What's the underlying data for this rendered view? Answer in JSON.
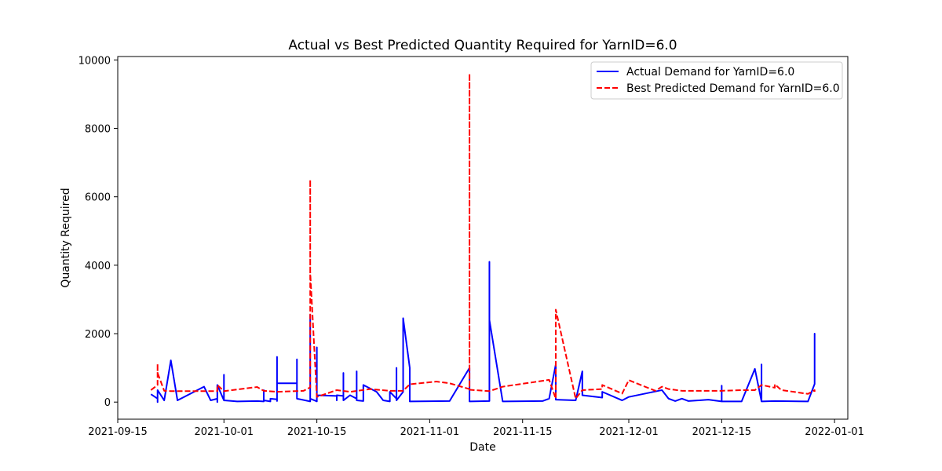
{
  "chart_data": {
    "type": "line",
    "title": "Actual vs Best Predicted Quantity Required for YarnID=6.0",
    "xlabel": "Date",
    "ylabel": "Quantity Required",
    "xlim": [
      "2021-09-15",
      "2022-01-03"
    ],
    "ylim": [
      -500,
      10100
    ],
    "x_ticks": [
      "2021-09-15",
      "2021-10-01",
      "2021-10-15",
      "2021-11-01",
      "2021-11-15",
      "2021-12-01",
      "2021-12-15",
      "2022-01-01"
    ],
    "y_ticks": [
      0,
      2000,
      4000,
      6000,
      8000,
      10000
    ],
    "grid": false,
    "legend_position": "top-right",
    "series": [
      {
        "name": "Actual Demand for YarnID=6.0",
        "color": "#0000ff",
        "style": "solid",
        "points": [
          [
            "2021-09-20",
            230
          ],
          [
            "2021-09-21",
            100
          ],
          [
            "2021-09-21",
            0
          ],
          [
            "2021-09-21",
            350
          ],
          [
            "2021-09-22",
            50
          ],
          [
            "2021-09-23",
            1220
          ],
          [
            "2021-09-24",
            50
          ],
          [
            "2021-09-28",
            450
          ],
          [
            "2021-09-29",
            50
          ],
          [
            "2021-09-30",
            100
          ],
          [
            "2021-09-30",
            0
          ],
          [
            "2021-09-30",
            500
          ],
          [
            "2021-10-01",
            50
          ],
          [
            "2021-10-01",
            800
          ],
          [
            "2021-10-01",
            50
          ],
          [
            "2021-10-03",
            20
          ],
          [
            "2021-10-06",
            30
          ],
          [
            "2021-10-07",
            20
          ],
          [
            "2021-10-07",
            350
          ],
          [
            "2021-10-07",
            50
          ],
          [
            "2021-10-08",
            20
          ],
          [
            "2021-10-08",
            100
          ],
          [
            "2021-10-09",
            80
          ],
          [
            "2021-10-09",
            30
          ],
          [
            "2021-10-09",
            1320
          ],
          [
            "2021-10-09",
            550
          ],
          [
            "2021-10-12",
            550
          ],
          [
            "2021-10-12",
            1250
          ],
          [
            "2021-10-12",
            100
          ],
          [
            "2021-10-14",
            20
          ],
          [
            "2021-10-14",
            2550
          ],
          [
            "2021-10-14",
            100
          ],
          [
            "2021-10-15",
            20
          ],
          [
            "2021-10-15",
            1600
          ],
          [
            "2021-10-15",
            200
          ],
          [
            "2021-10-18",
            180
          ],
          [
            "2021-10-18",
            50
          ],
          [
            "2021-10-18",
            200
          ],
          [
            "2021-10-19",
            180
          ],
          [
            "2021-10-19",
            850
          ],
          [
            "2021-10-19",
            50
          ],
          [
            "2021-10-20",
            200
          ],
          [
            "2021-10-21",
            100
          ],
          [
            "2021-10-21",
            900
          ],
          [
            "2021-10-21",
            50
          ],
          [
            "2021-10-22",
            30
          ],
          [
            "2021-10-22",
            500
          ],
          [
            "2021-10-24",
            300
          ],
          [
            "2021-10-25",
            50
          ],
          [
            "2021-10-26",
            20
          ],
          [
            "2021-10-26",
            300
          ],
          [
            "2021-10-27",
            100
          ],
          [
            "2021-10-27",
            1000
          ],
          [
            "2021-10-27",
            50
          ],
          [
            "2021-10-28",
            300
          ],
          [
            "2021-10-28",
            2450
          ],
          [
            "2021-10-29",
            1000
          ],
          [
            "2021-10-29",
            30
          ],
          [
            "2021-10-29",
            20
          ],
          [
            "2021-11-04",
            30
          ],
          [
            "2021-11-07",
            1000
          ],
          [
            "2021-11-07",
            20
          ],
          [
            "2021-11-10",
            30
          ],
          [
            "2021-11-10",
            4100
          ],
          [
            "2021-11-10",
            2400
          ],
          [
            "2021-11-12",
            20
          ],
          [
            "2021-11-18",
            30
          ],
          [
            "2021-11-19",
            100
          ],
          [
            "2021-11-20",
            1100
          ],
          [
            "2021-11-20",
            70
          ],
          [
            "2021-11-23",
            50
          ],
          [
            "2021-11-24",
            900
          ],
          [
            "2021-11-24",
            200
          ],
          [
            "2021-11-27",
            130
          ],
          [
            "2021-11-27",
            300
          ],
          [
            "2021-11-30",
            50
          ],
          [
            "2021-12-01",
            150
          ],
          [
            "2021-12-06",
            350
          ],
          [
            "2021-12-07",
            100
          ],
          [
            "2021-12-08",
            30
          ],
          [
            "2021-12-09",
            100
          ],
          [
            "2021-12-10",
            30
          ],
          [
            "2021-12-13",
            70
          ],
          [
            "2021-12-15",
            20
          ],
          [
            "2021-12-15",
            480
          ],
          [
            "2021-12-15",
            20
          ],
          [
            "2021-12-18",
            20
          ],
          [
            "2021-12-20",
            970
          ],
          [
            "2021-12-21",
            20
          ],
          [
            "2021-12-21",
            1100
          ],
          [
            "2021-12-21",
            20
          ],
          [
            "2021-12-23",
            30
          ],
          [
            "2021-12-28",
            20
          ],
          [
            "2021-12-29",
            530
          ],
          [
            "2021-12-29",
            2000
          ],
          [
            "2021-12-29",
            1080
          ]
        ]
      },
      {
        "name": "Best Predicted Demand for YarnID=6.0",
        "color": "#ff0000",
        "style": "dashed",
        "points": [
          [
            "2021-09-20",
            350
          ],
          [
            "2021-09-21",
            500
          ],
          [
            "2021-09-21",
            1120
          ],
          [
            "2021-09-21",
            850
          ],
          [
            "2021-09-22",
            330
          ],
          [
            "2021-09-23",
            320
          ],
          [
            "2021-09-28",
            320
          ],
          [
            "2021-09-30",
            320
          ],
          [
            "2021-09-30",
            500
          ],
          [
            "2021-10-01",
            320
          ],
          [
            "2021-10-06",
            440
          ],
          [
            "2021-10-07",
            330
          ],
          [
            "2021-10-09",
            300
          ],
          [
            "2021-10-13",
            330
          ],
          [
            "2021-10-14",
            430
          ],
          [
            "2021-10-14",
            6500
          ],
          [
            "2021-10-14",
            3800
          ],
          [
            "2021-10-15",
            150
          ],
          [
            "2021-10-18",
            350
          ],
          [
            "2021-10-20",
            300
          ],
          [
            "2021-10-23",
            380
          ],
          [
            "2021-10-26",
            330
          ],
          [
            "2021-10-28",
            330
          ],
          [
            "2021-10-29",
            520
          ],
          [
            "2021-11-02",
            600
          ],
          [
            "2021-11-04",
            550
          ],
          [
            "2021-11-07",
            380
          ],
          [
            "2021-11-07",
            9600
          ],
          [
            "2021-11-07",
            360
          ],
          [
            "2021-11-10",
            320
          ],
          [
            "2021-11-12",
            450
          ],
          [
            "2021-11-19",
            650
          ],
          [
            "2021-11-20",
            100
          ],
          [
            "2021-11-20",
            2700
          ],
          [
            "2021-11-23",
            100
          ],
          [
            "2021-11-24",
            350
          ],
          [
            "2021-11-27",
            380
          ],
          [
            "2021-11-27",
            500
          ],
          [
            "2021-11-30",
            250
          ],
          [
            "2021-12-01",
            640
          ],
          [
            "2021-12-05",
            330
          ],
          [
            "2021-12-06",
            450
          ],
          [
            "2021-12-07",
            380
          ],
          [
            "2021-12-09",
            330
          ],
          [
            "2021-12-15",
            330
          ],
          [
            "2021-12-18",
            350
          ],
          [
            "2021-12-20",
            350
          ],
          [
            "2021-12-21",
            500
          ],
          [
            "2021-12-23",
            420
          ],
          [
            "2021-12-23",
            520
          ],
          [
            "2021-12-24",
            350
          ],
          [
            "2021-12-28",
            240
          ],
          [
            "2021-12-29",
            350
          ],
          [
            "2021-12-29",
            300
          ]
        ]
      }
    ]
  }
}
